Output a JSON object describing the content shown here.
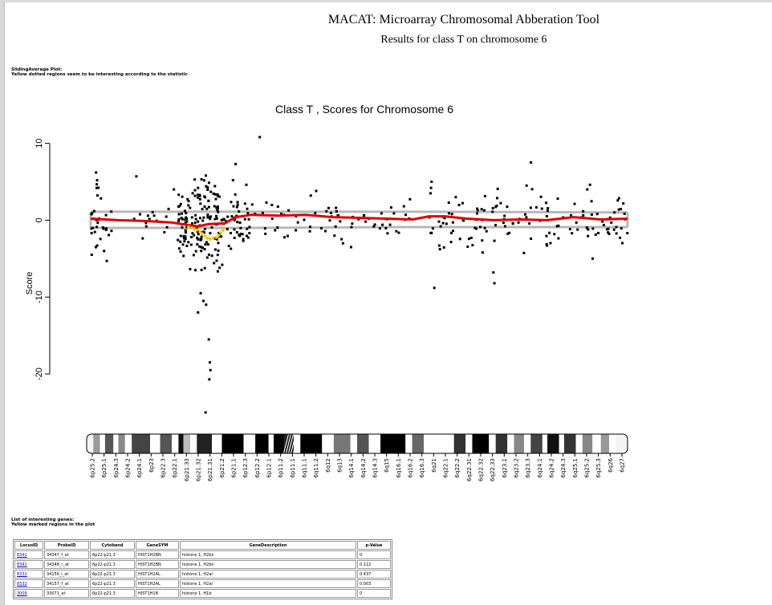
{
  "header": {
    "title": "MACAT: Microarray Chromosomal Abberation Tool",
    "subtitle": "Results for class T on chromosome 6"
  },
  "plot_notes": {
    "line1": "SlidingAverage Plot:",
    "line2": "Yellow dotted regions seem to be interesting according to the statistic"
  },
  "chart_data": {
    "type": "scatter",
    "title": "Class T , Scores for Chromosome 6",
    "xlabel": "",
    "ylabel": "Score",
    "ylim": [
      -25,
      11
    ],
    "yticks": [
      10,
      0,
      -10,
      -20
    ],
    "legend": "none",
    "colors": {
      "points": "#000000",
      "sliding_average": "#e00000",
      "interesting": "#f5c400",
      "band": "#b8b8b8"
    },
    "clusters": [
      {
        "x0": 0.0,
        "x1": 0.04,
        "n": 28,
        "spread": 2.2,
        "seed": 11
      },
      {
        "x0": 0.08,
        "x1": 0.15,
        "n": 14,
        "spread": 1.2,
        "seed": 12
      },
      {
        "x0": 0.16,
        "x1": 0.24,
        "n": 150,
        "spread": 2.6,
        "seed": 13
      },
      {
        "x0": 0.24,
        "x1": 0.3,
        "n": 50,
        "spread": 1.6,
        "seed": 14
      },
      {
        "x0": 0.3,
        "x1": 0.48,
        "n": 38,
        "spread": 1.2,
        "seed": 15
      },
      {
        "x0": 0.48,
        "x1": 0.6,
        "n": 26,
        "spread": 1.2,
        "seed": 16
      },
      {
        "x0": 0.63,
        "x1": 0.75,
        "n": 45,
        "spread": 1.8,
        "seed": 17
      },
      {
        "x0": 0.75,
        "x1": 0.9,
        "n": 45,
        "spread": 1.8,
        "seed": 18
      },
      {
        "x0": 0.9,
        "x1": 1.0,
        "n": 40,
        "spread": 1.7,
        "seed": 19
      }
    ],
    "outliers": [
      {
        "x": 0.01,
        "y": 6.2
      },
      {
        "x": 0.012,
        "y": 5.2
      },
      {
        "x": 0.011,
        "y": 4.2
      },
      {
        "x": 0.002,
        "y": -4.5
      },
      {
        "x": 0.03,
        "y": -5.3
      },
      {
        "x": 0.025,
        "y": -4.0
      },
      {
        "x": 0.085,
        "y": 5.7
      },
      {
        "x": 0.155,
        "y": 4.0
      },
      {
        "x": 0.19,
        "y": 3.5
      },
      {
        "x": 0.2,
        "y": 4.2
      },
      {
        "x": 0.195,
        "y": -6.5
      },
      {
        "x": 0.205,
        "y": -9.5
      },
      {
        "x": 0.21,
        "y": -10.5
      },
      {
        "x": 0.2,
        "y": -12.0
      },
      {
        "x": 0.215,
        "y": -11.0
      },
      {
        "x": 0.22,
        "y": -15.5
      },
      {
        "x": 0.222,
        "y": -18.5
      },
      {
        "x": 0.223,
        "y": -19.5
      },
      {
        "x": 0.221,
        "y": -20.7
      },
      {
        "x": 0.214,
        "y": -25.0
      },
      {
        "x": 0.245,
        "y": -5.8
      },
      {
        "x": 0.24,
        "y": -6.2
      },
      {
        "x": 0.27,
        "y": 7.3
      },
      {
        "x": 0.265,
        "y": 5.2
      },
      {
        "x": 0.29,
        "y": 4.6
      },
      {
        "x": 0.315,
        "y": 10.8
      },
      {
        "x": 0.42,
        "y": 3.8
      },
      {
        "x": 0.41,
        "y": 3.2
      },
      {
        "x": 0.47,
        "y": -3.0
      },
      {
        "x": 0.485,
        "y": -3.5
      },
      {
        "x": 0.635,
        "y": 5.0
      },
      {
        "x": 0.634,
        "y": 4.2
      },
      {
        "x": 0.633,
        "y": 3.5
      },
      {
        "x": 0.64,
        "y": -8.8
      },
      {
        "x": 0.75,
        "y": -6.8
      },
      {
        "x": 0.752,
        "y": -8.2
      },
      {
        "x": 0.73,
        "y": -4.2
      },
      {
        "x": 0.82,
        "y": 7.5
      },
      {
        "x": 0.812,
        "y": 4.5
      },
      {
        "x": 0.85,
        "y": -3.3
      },
      {
        "x": 0.93,
        "y": 4.6
      },
      {
        "x": 0.925,
        "y": 4.0
      },
      {
        "x": 0.935,
        "y": -5.0
      },
      {
        "x": 0.87,
        "y": 2.8
      },
      {
        "x": 0.68,
        "y": 3.0
      }
    ],
    "sliding_average": [
      [
        0.0,
        0.2
      ],
      [
        0.05,
        0.0
      ],
      [
        0.1,
        -0.1
      ],
      [
        0.15,
        -0.3
      ],
      [
        0.18,
        -0.6
      ],
      [
        0.2,
        -0.8
      ],
      [
        0.22,
        -0.5
      ],
      [
        0.25,
        -0.4
      ],
      [
        0.27,
        0.4
      ],
      [
        0.3,
        0.7
      ],
      [
        0.35,
        0.6
      ],
      [
        0.4,
        0.7
      ],
      [
        0.45,
        0.4
      ],
      [
        0.5,
        0.3
      ],
      [
        0.55,
        0.2
      ],
      [
        0.6,
        0.1
      ],
      [
        0.63,
        0.5
      ],
      [
        0.66,
        0.5
      ],
      [
        0.7,
        0.2
      ],
      [
        0.75,
        0.0
      ],
      [
        0.8,
        0.1
      ],
      [
        0.85,
        0.0
      ],
      [
        0.9,
        0.4
      ],
      [
        0.95,
        0.1
      ],
      [
        1.0,
        0.2
      ]
    ],
    "interesting_region": [
      [
        0.18,
        -0.8
      ],
      [
        0.2,
        -1.3
      ],
      [
        0.22,
        -2.5
      ],
      [
        0.235,
        -2.2
      ],
      [
        0.25,
        -1.0
      ]
    ],
    "band_upper": [
      [
        0.0,
        1.1
      ],
      [
        0.3,
        1.1
      ],
      [
        0.6,
        1.1
      ],
      [
        1.0,
        1.0
      ]
    ],
    "band_lower": [
      [
        0.0,
        -1.0
      ],
      [
        0.3,
        -1.0
      ],
      [
        0.6,
        -0.9
      ],
      [
        1.0,
        -0.9
      ]
    ],
    "ideogram": {
      "bands": [
        {
          "w": 8,
          "c": "#f4f4f4"
        },
        {
          "w": 8,
          "c": "#9a9a9a"
        },
        {
          "w": 6,
          "c": "#ffffff"
        },
        {
          "w": 10,
          "c": "#555555"
        },
        {
          "w": 6,
          "c": "#ffffff"
        },
        {
          "w": 8,
          "c": "#888888"
        },
        {
          "w": 8,
          "c": "#ffffff"
        },
        {
          "w": 22,
          "c": "#444444"
        },
        {
          "w": 12,
          "c": "#ffffff"
        },
        {
          "w": 14,
          "c": "#555555"
        },
        {
          "w": 8,
          "c": "#ffffff"
        },
        {
          "w": 6,
          "c": "#111111"
        },
        {
          "w": 8,
          "c": "#bbbbbb"
        },
        {
          "w": 8,
          "c": "#ffffff"
        },
        {
          "w": 18,
          "c": "#222222"
        },
        {
          "w": 12,
          "c": "#ffffff"
        },
        {
          "w": 26,
          "c": "#000000"
        },
        {
          "w": 14,
          "c": "#ffffff"
        },
        {
          "w": 16,
          "c": "#000000"
        },
        {
          "w": 6,
          "c": "#ffffff"
        },
        {
          "w": 12,
          "c": "#000000"
        },
        {
          "w": 12,
          "c": "#222222",
          "hatch": true
        },
        {
          "w": 8,
          "c": "#ffffff"
        },
        {
          "w": 26,
          "c": "#000000"
        },
        {
          "w": 14,
          "c": "#ffffff"
        },
        {
          "w": 20,
          "c": "#777777"
        },
        {
          "w": 8,
          "c": "#ffffff"
        },
        {
          "w": 14,
          "c": "#555555"
        },
        {
          "w": 14,
          "c": "#ffffff"
        },
        {
          "w": 30,
          "c": "#000000"
        },
        {
          "w": 8,
          "c": "#ffffff"
        },
        {
          "w": 14,
          "c": "#666666"
        },
        {
          "w": 36,
          "c": "#ffffff"
        },
        {
          "w": 14,
          "c": "#333333"
        },
        {
          "w": 8,
          "c": "#ffffff"
        },
        {
          "w": 20,
          "c": "#000000"
        },
        {
          "w": 8,
          "c": "#ffffff"
        },
        {
          "w": 14,
          "c": "#333333"
        },
        {
          "w": 8,
          "c": "#ffffff"
        },
        {
          "w": 12,
          "c": "#888888"
        },
        {
          "w": 8,
          "c": "#ffffff"
        },
        {
          "w": 14,
          "c": "#444444"
        },
        {
          "w": 6,
          "c": "#ffffff"
        },
        {
          "w": 14,
          "c": "#111111"
        },
        {
          "w": 6,
          "c": "#ffffff"
        },
        {
          "w": 14,
          "c": "#333333"
        },
        {
          "w": 8,
          "c": "#ffffff"
        },
        {
          "w": 12,
          "c": "#888888"
        },
        {
          "w": 10,
          "c": "#ffffff"
        },
        {
          "w": 10,
          "c": "#999999"
        },
        {
          "w": 8,
          "c": "#ffffff"
        },
        {
          "w": 14,
          "c": "#f4f4f4"
        }
      ],
      "labels": [
        "6p25.2",
        "6p25.1",
        "6p24.3",
        "6p24.2",
        "6p24.1",
        "6p23",
        "6p22.3",
        "6p22.1",
        "6p21.33",
        "6p21.32",
        "6p21.31",
        "6p21.2",
        "6p21.1",
        "6p12.3",
        "6p12.2",
        "6p12.1",
        "6p11.2",
        "6p11.1",
        "6q11.1",
        "6q11.2",
        "6q12",
        "6q13",
        "6q14.1",
        "6q14.2",
        "6q14.3",
        "6q15",
        "6q16.1",
        "6q16.2",
        "6q16.3",
        "6q21",
        "6q22.1",
        "6q22.2",
        "6q22.31",
        "6q22.32",
        "6q22.33",
        "6q23.1",
        "6q23.2",
        "6q23.3",
        "6q24.1",
        "6q24.2",
        "6q24.3",
        "6q25.1",
        "6q25.2",
        "6q25.3",
        "6q26",
        "6q27"
      ]
    }
  },
  "genes": {
    "intro_line1": "List of interesting genes:",
    "intro_line2": "Yellow marked regions in the plot",
    "columns": [
      "LocusID",
      "ProbeID",
      "Cytoband",
      "GeneSYM",
      "GeneDescription",
      "p-Value"
    ],
    "rows": [
      {
        "locus": "8341",
        "probe": "34347_f_at",
        "cytoband": "6p22-p21.3",
        "symbol": "HIST1H2BN",
        "description": "histone 1, H2bn",
        "pvalue": "0"
      },
      {
        "locus": "8341",
        "probe": "34348_r_at",
        "cytoband": "6p22-p21.3",
        "symbol": "HIST1H2BN",
        "description": "histone 1, H2bn",
        "pvalue": "0.112"
      },
      {
        "locus": "8332",
        "probe": "34156_i_at",
        "cytoband": "6p22-p21.3",
        "symbol": "HIST1H2AL",
        "description": "histone 1, H2al",
        "pvalue": "0.437"
      },
      {
        "locus": "8332",
        "probe": "34157_f_at",
        "cytoband": "6p22-p21.3",
        "symbol": "HIST1H2AL",
        "description": "histone 1, H2al",
        "pvalue": "0.003"
      },
      {
        "locus": "3009",
        "probe": "33071_at",
        "cytoband": "6p22-p21.3",
        "symbol": "HIST1H1B",
        "description": "histone 1, H1b",
        "pvalue": "0"
      }
    ]
  }
}
